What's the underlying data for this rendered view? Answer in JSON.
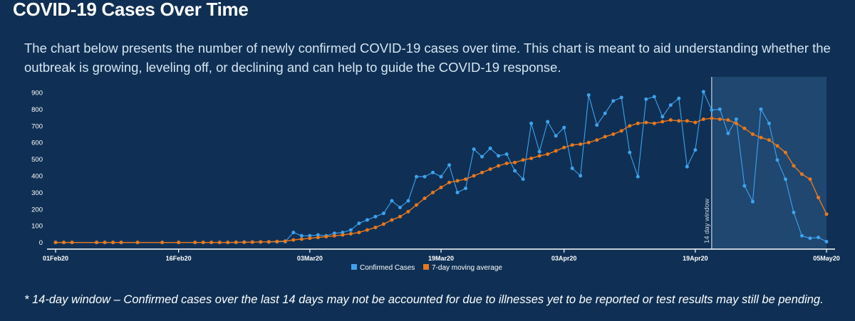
{
  "page": {
    "title": "COVID-19 Cases Over Time",
    "description": "The chart below presents the number of newly confirmed COVID-19 cases over time. This chart is meant to aid understanding whether the outbreak is growing, leveling off, or declining and can help to guide the COVID-19 response.",
    "footnote": "* 14-day window – Confirmed cases over the last 14 days may not be accounted for due to illnesses yet to be reported or test results may still be pending."
  },
  "colors": {
    "background": "#0f3054",
    "confirmed": "#3fa2ee",
    "average": "#e8781e",
    "window_shade": "#1f4770",
    "axis": "#ffffff"
  },
  "chart_data": {
    "type": "line",
    "title": "",
    "xlabel": "",
    "ylabel": "",
    "x_start": "2020-02-01",
    "x_end": "2020-05-05",
    "ylim": [
      -40,
      960
    ],
    "yticks": [
      0,
      100,
      200,
      300,
      400,
      500,
      600,
      700,
      800,
      900
    ],
    "xticks": [
      {
        "date": "2020-02-01",
        "label": "01Feb20"
      },
      {
        "date": "2020-02-16",
        "label": "16Feb20"
      },
      {
        "date": "2020-03-03",
        "label": "03Mar20"
      },
      {
        "date": "2020-03-19",
        "label": "19Mar20"
      },
      {
        "date": "2020-04-03",
        "label": "03Apr20"
      },
      {
        "date": "2020-04-19",
        "label": "19Apr20"
      },
      {
        "date": "2020-05-05",
        "label": "05May20"
      }
    ],
    "grid": false,
    "legend_position": "bottom-center",
    "window": {
      "start": "2020-04-21",
      "end": "2020-05-05",
      "label": "14 day window"
    },
    "series": [
      {
        "name": "Confirmed Cases",
        "color": "#3fa2ee",
        "points": [
          [
            "2020-02-01",
            0
          ],
          [
            "2020-02-02",
            0
          ],
          [
            "2020-02-03",
            0
          ],
          [
            "2020-02-06",
            0
          ],
          [
            "2020-02-07",
            0
          ],
          [
            "2020-02-08",
            0
          ],
          [
            "2020-02-09",
            0
          ],
          [
            "2020-02-11",
            0
          ],
          [
            "2020-02-14",
            0
          ],
          [
            "2020-02-16",
            0
          ],
          [
            "2020-02-18",
            0
          ],
          [
            "2020-02-19",
            0
          ],
          [
            "2020-02-20",
            0
          ],
          [
            "2020-02-21",
            0
          ],
          [
            "2020-02-22",
            0
          ],
          [
            "2020-02-23",
            0
          ],
          [
            "2020-02-24",
            2
          ],
          [
            "2020-02-25",
            2
          ],
          [
            "2020-02-26",
            3
          ],
          [
            "2020-02-27",
            3
          ],
          [
            "2020-02-28",
            4
          ],
          [
            "2020-02-29",
            5
          ],
          [
            "2020-03-01",
            60
          ],
          [
            "2020-03-02",
            40
          ],
          [
            "2020-03-03",
            40
          ],
          [
            "2020-03-04",
            45
          ],
          [
            "2020-03-05",
            40
          ],
          [
            "2020-03-06",
            55
          ],
          [
            "2020-03-07",
            60
          ],
          [
            "2020-03-08",
            75
          ],
          [
            "2020-03-09",
            115
          ],
          [
            "2020-03-10",
            135
          ],
          [
            "2020-03-11",
            155
          ],
          [
            "2020-03-12",
            175
          ],
          [
            "2020-03-13",
            250
          ],
          [
            "2020-03-14",
            210
          ],
          [
            "2020-03-15",
            250
          ],
          [
            "2020-03-16",
            395
          ],
          [
            "2020-03-17",
            395
          ],
          [
            "2020-03-18",
            420
          ],
          [
            "2020-03-19",
            395
          ],
          [
            "2020-03-20",
            465
          ],
          [
            "2020-03-21",
            300
          ],
          [
            "2020-03-22",
            325
          ],
          [
            "2020-03-23",
            560
          ],
          [
            "2020-03-24",
            515
          ],
          [
            "2020-03-25",
            565
          ],
          [
            "2020-03-26",
            520
          ],
          [
            "2020-03-27",
            530
          ],
          [
            "2020-03-28",
            430
          ],
          [
            "2020-03-29",
            380
          ],
          [
            "2020-03-30",
            715
          ],
          [
            "2020-03-31",
            545
          ],
          [
            "2020-04-01",
            725
          ],
          [
            "2020-04-02",
            640
          ],
          [
            "2020-04-03",
            690
          ],
          [
            "2020-04-04",
            445
          ],
          [
            "2020-04-05",
            400
          ],
          [
            "2020-04-06",
            885
          ],
          [
            "2020-04-07",
            705
          ],
          [
            "2020-04-08",
            775
          ],
          [
            "2020-04-09",
            850
          ],
          [
            "2020-04-10",
            870
          ],
          [
            "2020-04-11",
            540
          ],
          [
            "2020-04-12",
            395
          ],
          [
            "2020-04-13",
            860
          ],
          [
            "2020-04-14",
            875
          ],
          [
            "2020-04-15",
            755
          ],
          [
            "2020-04-16",
            825
          ],
          [
            "2020-04-17",
            865
          ],
          [
            "2020-04-18",
            455
          ],
          [
            "2020-04-19",
            555
          ],
          [
            "2020-04-20",
            905
          ],
          [
            "2020-04-21",
            795
          ],
          [
            "2020-04-22",
            800
          ],
          [
            "2020-04-23",
            655
          ],
          [
            "2020-04-24",
            740
          ],
          [
            "2020-04-25",
            340
          ],
          [
            "2020-04-26",
            245
          ],
          [
            "2020-04-27",
            800
          ],
          [
            "2020-04-28",
            715
          ],
          [
            "2020-04-29",
            495
          ],
          [
            "2020-04-30",
            380
          ],
          [
            "2020-05-01",
            180
          ],
          [
            "2020-05-02",
            40
          ],
          [
            "2020-05-03",
            25
          ],
          [
            "2020-05-04",
            30
          ],
          [
            "2020-05-05",
            5
          ]
        ]
      },
      {
        "name": "7-day moving average",
        "color": "#e8781e",
        "points": [
          [
            "2020-02-01",
            0
          ],
          [
            "2020-02-02",
            0
          ],
          [
            "2020-02-03",
            0
          ],
          [
            "2020-02-06",
            0
          ],
          [
            "2020-02-07",
            0
          ],
          [
            "2020-02-08",
            0
          ],
          [
            "2020-02-09",
            0
          ],
          [
            "2020-02-11",
            0
          ],
          [
            "2020-02-14",
            0
          ],
          [
            "2020-02-16",
            0
          ],
          [
            "2020-02-18",
            0
          ],
          [
            "2020-02-19",
            0
          ],
          [
            "2020-02-20",
            0
          ],
          [
            "2020-02-21",
            0
          ],
          [
            "2020-02-22",
            0
          ],
          [
            "2020-02-23",
            1
          ],
          [
            "2020-02-24",
            1
          ],
          [
            "2020-02-25",
            2
          ],
          [
            "2020-02-26",
            3
          ],
          [
            "2020-02-27",
            4
          ],
          [
            "2020-02-28",
            6
          ],
          [
            "2020-02-29",
            8
          ],
          [
            "2020-03-01",
            15
          ],
          [
            "2020-03-02",
            20
          ],
          [
            "2020-03-03",
            25
          ],
          [
            "2020-03-04",
            30
          ],
          [
            "2020-03-05",
            35
          ],
          [
            "2020-03-06",
            40
          ],
          [
            "2020-03-07",
            45
          ],
          [
            "2020-03-08",
            52
          ],
          [
            "2020-03-09",
            60
          ],
          [
            "2020-03-10",
            75
          ],
          [
            "2020-03-11",
            90
          ],
          [
            "2020-03-12",
            110
          ],
          [
            "2020-03-13",
            135
          ],
          [
            "2020-03-14",
            155
          ],
          [
            "2020-03-15",
            185
          ],
          [
            "2020-03-16",
            225
          ],
          [
            "2020-03-17",
            265
          ],
          [
            "2020-03-18",
            300
          ],
          [
            "2020-03-19",
            330
          ],
          [
            "2020-03-20",
            360
          ],
          [
            "2020-03-21",
            370
          ],
          [
            "2020-03-22",
            380
          ],
          [
            "2020-03-23",
            400
          ],
          [
            "2020-03-24",
            420
          ],
          [
            "2020-03-25",
            440
          ],
          [
            "2020-03-26",
            460
          ],
          [
            "2020-03-27",
            475
          ],
          [
            "2020-03-28",
            480
          ],
          [
            "2020-03-29",
            495
          ],
          [
            "2020-03-30",
            505
          ],
          [
            "2020-03-31",
            520
          ],
          [
            "2020-04-01",
            530
          ],
          [
            "2020-04-02",
            550
          ],
          [
            "2020-04-03",
            570
          ],
          [
            "2020-04-04",
            585
          ],
          [
            "2020-04-05",
            590
          ],
          [
            "2020-04-06",
            600
          ],
          [
            "2020-04-07",
            615
          ],
          [
            "2020-04-08",
            635
          ],
          [
            "2020-04-09",
            650
          ],
          [
            "2020-04-10",
            670
          ],
          [
            "2020-04-11",
            700
          ],
          [
            "2020-04-12",
            715
          ],
          [
            "2020-04-13",
            720
          ],
          [
            "2020-04-14",
            715
          ],
          [
            "2020-04-15",
            725
          ],
          [
            "2020-04-16",
            735
          ],
          [
            "2020-04-17",
            730
          ],
          [
            "2020-04-18",
            730
          ],
          [
            "2020-04-19",
            720
          ],
          [
            "2020-04-20",
            740
          ],
          [
            "2020-04-21",
            745
          ],
          [
            "2020-04-22",
            740
          ],
          [
            "2020-04-23",
            735
          ],
          [
            "2020-04-24",
            715
          ],
          [
            "2020-04-25",
            685
          ],
          [
            "2020-04-26",
            650
          ],
          [
            "2020-04-27",
            630
          ],
          [
            "2020-04-28",
            615
          ],
          [
            "2020-04-29",
            580
          ],
          [
            "2020-04-30",
            540
          ],
          [
            "2020-05-01",
            460
          ],
          [
            "2020-05-02",
            410
          ],
          [
            "2020-05-03",
            380
          ],
          [
            "2020-05-04",
            270
          ],
          [
            "2020-05-05",
            170
          ]
        ]
      }
    ]
  }
}
